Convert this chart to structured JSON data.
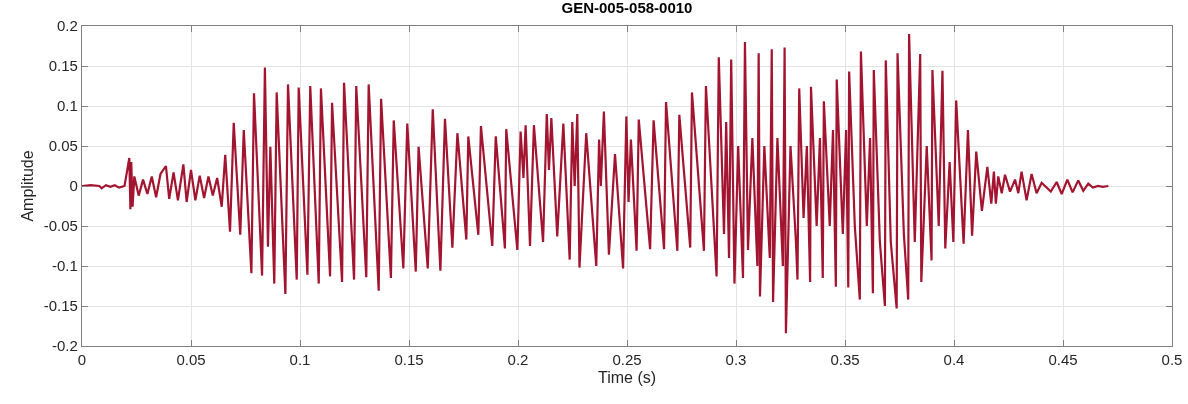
{
  "chart_data": {
    "type": "line",
    "title": "GEN-005-058-0010",
    "xlabel": "Time (s)",
    "ylabel": "Amplitude",
    "color": "#a2142f",
    "grid": true,
    "xlim": [
      0,
      0.5
    ],
    "xticks": [
      0,
      0.05,
      0.1,
      0.15,
      0.2,
      0.25,
      0.3,
      0.35,
      0.4,
      0.45,
      0.5
    ],
    "ylim": [
      -0.2,
      0.2
    ],
    "yticks": [
      -0.2,
      -0.15,
      -0.1,
      -0.05,
      0,
      0.05,
      0.1,
      0.15,
      0.2
    ],
    "x": [
      0,
      0.004,
      0.008,
      0.009,
      0.011,
      0.013,
      0.015,
      0.017,
      0.0195,
      0.0217,
      0.0222,
      0.0226,
      0.0232,
      0.024,
      0.026,
      0.028,
      0.03,
      0.032,
      0.034,
      0.036,
      0.0385,
      0.04,
      0.042,
      0.044,
      0.0465,
      0.048,
      0.05,
      0.052,
      0.054,
      0.056,
      0.058,
      0.06,
      0.062,
      0.0641,
      0.0657,
      0.0679,
      0.0696,
      0.0726,
      0.0742,
      0.0777,
      0.0789,
      0.0826,
      0.0839,
      0.0853,
      0.0864,
      0.0882,
      0.0893,
      0.0933,
      0.0945,
      0.0985,
      0.0994,
      0.1034,
      0.1047,
      0.1086,
      0.1096,
      0.1138,
      0.1147,
      0.1193,
      0.1202,
      0.1248,
      0.1258,
      0.1304,
      0.1315,
      0.1361,
      0.1372,
      0.1417,
      0.143,
      0.1474,
      0.1492,
      0.1531,
      0.1544,
      0.1586,
      0.1609,
      0.1644,
      0.1665,
      0.1699,
      0.1722,
      0.1763,
      0.1772,
      0.1818,
      0.183,
      0.1882,
      0.1898,
      0.194,
      0.1946,
      0.1997,
      0.2012,
      0.2025,
      0.2035,
      0.2055,
      0.2073,
      0.2115,
      0.2132,
      0.2142,
      0.2153,
      0.218,
      0.2208,
      0.2237,
      0.2249,
      0.226,
      0.2272,
      0.2282,
      0.2313,
      0.2359,
      0.2372,
      0.238,
      0.2394,
      0.2417,
      0.2445,
      0.2482,
      0.2497,
      0.2507,
      0.2518,
      0.2544,
      0.2554,
      0.2606,
      0.2622,
      0.267,
      0.2679,
      0.2731,
      0.274,
      0.279,
      0.2798,
      0.2853,
      0.2862,
      0.2911,
      0.2921,
      0.2945,
      0.2955,
      0.2968,
      0.2978,
      0.2993,
      0.301,
      0.3032,
      0.3041,
      0.3055,
      0.3075,
      0.3098,
      0.3104,
      0.311,
      0.313,
      0.3155,
      0.3164,
      0.317,
      0.319,
      0.3215,
      0.3223,
      0.3229,
      0.325,
      0.3275,
      0.3282,
      0.329,
      0.331,
      0.3325,
      0.334,
      0.3344,
      0.337,
      0.3385,
      0.3398,
      0.3403,
      0.343,
      0.3445,
      0.3458,
      0.3462,
      0.349,
      0.3505,
      0.3515,
      0.3519,
      0.3545,
      0.3568,
      0.3573,
      0.36,
      0.3615,
      0.3628,
      0.3632,
      0.366,
      0.3683,
      0.3687,
      0.371,
      0.3737,
      0.3741,
      0.377,
      0.379,
      0.3794,
      0.382,
      0.3845,
      0.385,
      0.3875,
      0.3897,
      0.3901,
      0.393,
      0.3947,
      0.396,
      0.398,
      0.3997,
      0.401,
      0.4044,
      0.4064,
      0.4083,
      0.4102,
      0.4128,
      0.4153,
      0.4171,
      0.4183,
      0.4192,
      0.4203,
      0.4219,
      0.4234,
      0.4257,
      0.428,
      0.4295,
      0.431,
      0.4333,
      0.4356,
      0.4379,
      0.4402,
      0.4444,
      0.4471,
      0.4494,
      0.452,
      0.4544,
      0.457,
      0.4593,
      0.4616,
      0.4637,
      0.466,
      0.4683,
      0.4708
    ],
    "values": [
      0,
      0.001,
      0,
      -0.003,
      0.001,
      -0.001,
      0.001,
      -0.002,
      0,
      0.035,
      -0.029,
      0.03,
      -0.026,
      0.012,
      -0.012,
      0.008,
      -0.01,
      0.012,
      -0.014,
      0.015,
      0.025,
      -0.016,
      0.017,
      -0.018,
      0.027,
      -0.02,
      0.02,
      -0.018,
      0.013,
      -0.015,
      0.012,
      -0.012,
      0.01,
      -0.026,
      0.039,
      -0.057,
      0.079,
      -0.061,
      0.07,
      -0.109,
      0.116,
      -0.112,
      0.148,
      -0.076,
      0.049,
      -0.122,
      0.117,
      -0.135,
      0.127,
      -0.117,
      0.123,
      -0.111,
      0.125,
      -0.122,
      0.122,
      -0.113,
      0.104,
      -0.12,
      0.129,
      -0.117,
      0.125,
      -0.114,
      0.127,
      -0.131,
      0.109,
      -0.115,
      0.082,
      -0.103,
      0.078,
      -0.107,
      0.049,
      -0.103,
      0.096,
      -0.106,
      0.084,
      -0.077,
      0.066,
      -0.067,
      0.062,
      -0.061,
      0.075,
      -0.075,
      0.062,
      -0.078,
      0.071,
      -0.08,
      0.068,
      0.01,
      0.076,
      -0.075,
      0.076,
      -0.07,
      0.09,
      0.02,
      0.085,
      -0.063,
      0.078,
      -0.092,
      0.08,
      0,
      0.09,
      -0.102,
      0.066,
      -0.1,
      0.058,
      0,
      0.093,
      -0.086,
      0.04,
      -0.103,
      0.087,
      -0.02,
      0.058,
      -0.081,
      0.083,
      -0.079,
      0.082,
      -0.079,
      0.105,
      -0.081,
      0.089,
      -0.077,
      0.117,
      -0.081,
      0.125,
      -0.113,
      0.161,
      -0.06,
      0.08,
      -0.09,
      0.158,
      -0.122,
      0.05,
      -0.115,
      0.18,
      -0.08,
      0.06,
      -0.1,
      0.166,
      -0.138,
      0.05,
      -0.09,
      0.171,
      -0.145,
      0.06,
      -0.1,
      0.173,
      -0.184,
      0.05,
      -0.07,
      -0.117,
      0.122,
      -0.04,
      0.05,
      -0.12,
      0.124,
      -0.05,
      0.06,
      -0.115,
      0.106,
      -0.05,
      0.07,
      -0.126,
      0.133,
      -0.06,
      0.07,
      -0.127,
      0.143,
      -0.05,
      -0.142,
      0.168,
      -0.05,
      0.06,
      -0.134,
      0.145,
      -0.07,
      -0.15,
      0.157,
      -0.07,
      -0.153,
      0.166,
      -0.06,
      -0.142,
      0.19,
      -0.07,
      0.165,
      -0.12,
      0.05,
      -0.093,
      0.145,
      -0.05,
      0.144,
      -0.078,
      0.03,
      -0.07,
      0.107,
      -0.072,
      0.07,
      -0.062,
      0.043,
      -0.031,
      0.024,
      -0.022,
      0.018,
      -0.022,
      0.012,
      -0.009,
      0.014,
      -0.007,
      0.008,
      -0.009,
      0.018,
      -0.018,
      0.015,
      -0.009,
      0.004,
      -0.007,
      0.005,
      -0.01,
      0.008,
      -0.008,
      0.007,
      -0.006,
      0.003,
      -0.002,
      0,
      -0.001,
      0
    ]
  }
}
